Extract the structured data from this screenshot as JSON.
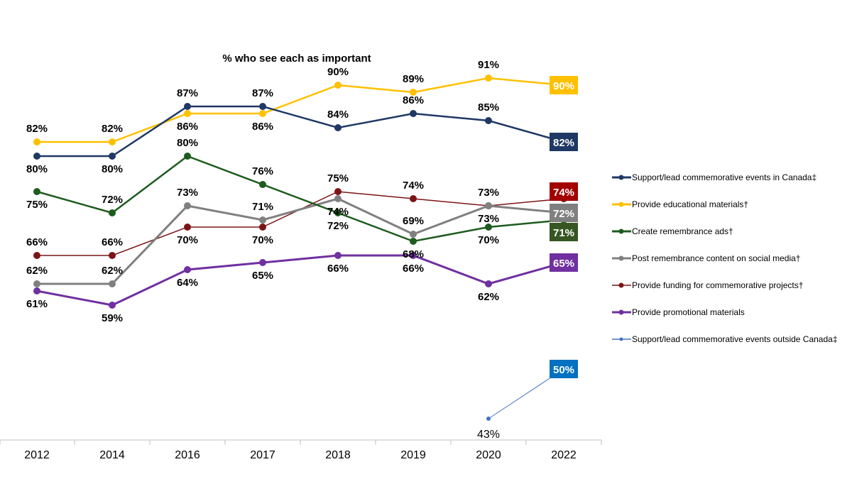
{
  "chart_data": {
    "type": "line",
    "title": "% who see each as important",
    "categories": [
      "2012",
      "2014",
      "2016",
      "2017",
      "2018",
      "2019",
      "2020",
      "2022"
    ],
    "ylim": [
      40,
      95
    ],
    "grid": false,
    "legend_position": "right",
    "series": [
      {
        "name": "Support/lead commemorative events in Canada‡",
        "values": [
          80,
          80,
          87,
          87,
          84,
          86,
          85,
          82
        ],
        "color": "#1f3864",
        "box_color": "#1f3864"
      },
      {
        "name": "Provide educational materials†",
        "values": [
          82,
          82,
          86,
          86,
          90,
          89,
          91,
          90
        ],
        "color": "#ffc000",
        "box_color": "#ffc000"
      },
      {
        "name": "Create remembrance ads†",
        "values": [
          75,
          72,
          80,
          76,
          72,
          68,
          70,
          71
        ],
        "color": "#1e5b1e",
        "box_color": "#375623"
      },
      {
        "name": "Post remembrance content on social media†",
        "values": [
          62,
          62,
          73,
          71,
          74,
          69,
          73,
          72
        ],
        "color": "#808080",
        "box_color": "#808080"
      },
      {
        "name": "Provide funding for commemorative projects†",
        "values": [
          66,
          66,
          70,
          70,
          75,
          74,
          73,
          74
        ],
        "color": "#7b1416",
        "box_color": "#a50000"
      },
      {
        "name": "Provide promotional materials",
        "values": [
          61,
          59,
          64,
          65,
          66,
          66,
          62,
          65
        ],
        "color": "#7030a0",
        "box_color": "#7030a0"
      },
      {
        "name": "Support/lead commemorative events outside Canada‡",
        "values": [
          null,
          null,
          null,
          null,
          null,
          null,
          43,
          50
        ],
        "color": "#4472c4",
        "box_color": "#0070c0"
      }
    ]
  }
}
